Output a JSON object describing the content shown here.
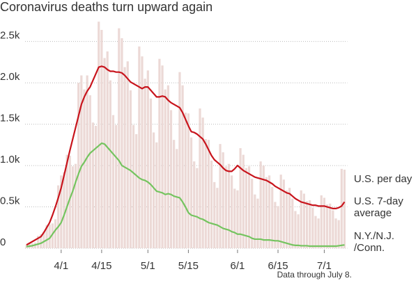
{
  "chart_data": {
    "type": "bar",
    "title": "Coronavirus deaths turn upward again",
    "footnote": "Data through July 8.",
    "categories": [
      "3/20",
      "3/21",
      "3/22",
      "3/23",
      "3/24",
      "3/25",
      "3/26",
      "3/27",
      "3/28",
      "3/29",
      "3/30",
      "3/31",
      "4/1",
      "4/2",
      "4/3",
      "4/4",
      "4/5",
      "4/6",
      "4/7",
      "4/8",
      "4/9",
      "4/10",
      "4/11",
      "4/12",
      "4/13",
      "4/14",
      "4/15",
      "4/16",
      "4/17",
      "4/18",
      "4/19",
      "4/20",
      "4/21",
      "4/22",
      "4/23",
      "4/24",
      "4/25",
      "4/26",
      "4/27",
      "4/28",
      "4/29",
      "4/30",
      "5/1",
      "5/2",
      "5/3",
      "5/4",
      "5/5",
      "5/6",
      "5/7",
      "5/8",
      "5/9",
      "5/10",
      "5/11",
      "5/12",
      "5/13",
      "5/14",
      "5/15",
      "5/16",
      "5/17",
      "5/18",
      "5/19",
      "5/20",
      "5/21",
      "5/22",
      "5/23",
      "5/24",
      "5/25",
      "5/26",
      "5/27",
      "5/28",
      "5/29",
      "5/30",
      "5/31",
      "6/1",
      "6/2",
      "6/3",
      "6/4",
      "6/5",
      "6/6",
      "6/7",
      "6/8",
      "6/9",
      "6/10",
      "6/11",
      "6/12",
      "6/13",
      "6/14",
      "6/15",
      "6/16",
      "6/17",
      "6/18",
      "6/19",
      "6/20",
      "6/21",
      "6/22",
      "6/23",
      "6/24",
      "6/25",
      "6/26",
      "6/27",
      "6/28",
      "6/29",
      "6/30",
      "7/1",
      "7/2",
      "7/3",
      "7/4",
      "7/5",
      "7/6",
      "7/7",
      "7/8"
    ],
    "xticks": [
      "4/1",
      "4/15",
      "5/1",
      "5/15",
      "6/1",
      "6/15",
      "7/1"
    ],
    "ylim": [
      0,
      2800
    ],
    "yticks": [
      0,
      {
        "value": 500,
        "label": "0.5k"
      },
      {
        "value": 1000,
        "label": "1.0k"
      },
      {
        "value": 1500,
        "label": "1.5k"
      },
      {
        "value": 2000,
        "label": "2.0k"
      },
      {
        "value": 2500,
        "label": "2.5k"
      }
    ],
    "grid": true,
    "series": [
      {
        "name": "U.S. per day",
        "type": "bar",
        "color": "#ecd9d6",
        "values": [
          40,
          60,
          60,
          70,
          150,
          170,
          200,
          280,
          290,
          300,
          350,
          760,
          880,
          920,
          1130,
          1120,
          990,
          1020,
          2000,
          2090,
          1920,
          2090,
          1850,
          1520,
          1480,
          2740,
          2640,
          2300,
          2380,
          2030,
          1610,
          1490,
          2660,
          2540,
          2190,
          2260,
          1910,
          1490,
          1380,
          2440,
          2320,
          2050,
          2150,
          1810,
          1400,
          1280,
          2290,
          2210,
          1920,
          1970,
          1670,
          1310,
          1200,
          2130,
          1970,
          1640,
          1630,
          1340,
          1050,
          970,
          1690,
          1580,
          1320,
          1310,
          1060,
          800,
          730,
          1260,
          1160,
          990,
          1020,
          880,
          720,
          700,
          1210,
          1130,
          970,
          990,
          840,
          650,
          600,
          1050,
          1000,
          860,
          880,
          740,
          560,
          510,
          890,
          830,
          700,
          730,
          600,
          450,
          410,
          700,
          660,
          570,
          580,
          490,
          390,
          360,
          640,
          610,
          530,
          540,
          460,
          360,
          340,
          960,
          950
        ]
      },
      {
        "name": "U.S. 7-day\naverage",
        "type": "line",
        "color": "#c8141c",
        "values": [
          40,
          60,
          80,
          100,
          120,
          140,
          190,
          250,
          310,
          400,
          500,
          610,
          730,
          880,
          1030,
          1180,
          1320,
          1460,
          1600,
          1740,
          1830,
          1900,
          1950,
          2030,
          2110,
          2190,
          2200,
          2190,
          2160,
          2140,
          2140,
          2130,
          2130,
          2120,
          2090,
          2050,
          2010,
          1990,
          1970,
          1950,
          1930,
          1950,
          1950,
          1910,
          1870,
          1830,
          1830,
          1840,
          1830,
          1790,
          1760,
          1740,
          1720,
          1700,
          1640,
          1560,
          1480,
          1410,
          1400,
          1380,
          1350,
          1320,
          1260,
          1190,
          1120,
          1070,
          1040,
          1010,
          970,
          940,
          930,
          930,
          960,
          1000,
          970,
          940,
          920,
          900,
          880,
          860,
          850,
          840,
          830,
          820,
          800,
          780,
          750,
          730,
          710,
          690,
          670,
          660,
          630,
          600,
          580,
          560,
          550,
          540,
          530,
          520,
          520,
          510,
          510,
          510,
          500,
          490,
          480,
          480,
          490,
          510,
          560
        ]
      },
      {
        "name": "N.Y./N.J.\n/Conn.",
        "type": "line",
        "color": "#74c45f",
        "values": [
          20,
          25,
          30,
          40,
          50,
          60,
          80,
          100,
          120,
          170,
          220,
          260,
          310,
          400,
          500,
          600,
          690,
          800,
          900,
          990,
          1040,
          1100,
          1150,
          1180,
          1210,
          1240,
          1270,
          1260,
          1220,
          1180,
          1140,
          1100,
          1060,
          1000,
          980,
          960,
          940,
          910,
          880,
          850,
          830,
          820,
          800,
          770,
          730,
          690,
          680,
          670,
          650,
          660,
          650,
          630,
          620,
          610,
          560,
          500,
          430,
          400,
          390,
          380,
          360,
          350,
          330,
          310,
          300,
          290,
          280,
          260,
          240,
          230,
          220,
          200,
          190,
          170,
          170,
          160,
          150,
          140,
          120,
          110,
          110,
          110,
          100,
          100,
          100,
          95,
          90,
          90,
          80,
          70,
          60,
          50,
          40,
          35,
          35,
          30,
          30,
          30,
          25,
          25,
          25,
          25,
          25,
          25,
          25,
          25,
          25,
          25,
          30,
          35,
          40
        ]
      }
    ]
  }
}
